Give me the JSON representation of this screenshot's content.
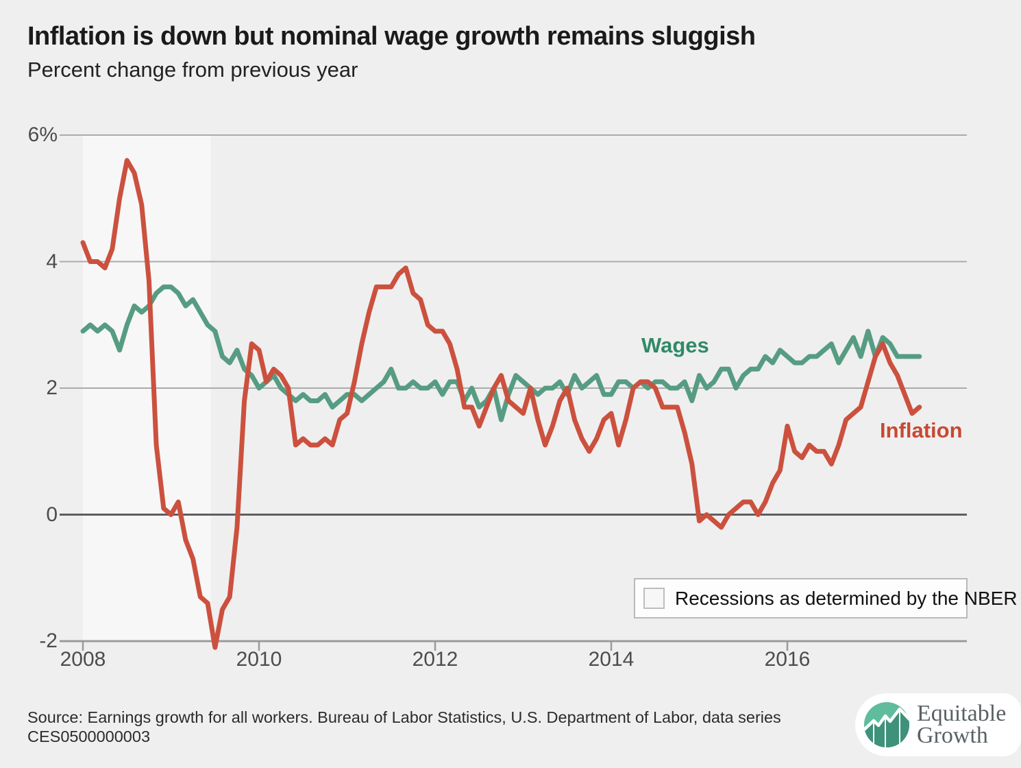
{
  "header": {
    "title": "Inflation is down but nominal wage growth remains sluggish",
    "subtitle": "Percent change from previous year"
  },
  "chart_data": {
    "type": "line",
    "title": "Inflation is down but nominal wage growth remains sluggish",
    "subtitle": "Percent change from previous year",
    "x_start_year": 2008,
    "x_step_months": 1,
    "xlim": [
      2007.73,
      2017.95
    ],
    "ylim": [
      -2,
      6
    ],
    "grid": "horizontal",
    "x_ticks": [
      2008,
      2010,
      2012,
      2014,
      2016
    ],
    "x_tick_labels": [
      "2008",
      "2010",
      "2012",
      "2014",
      "2016"
    ],
    "y_ticks": [
      6,
      4,
      2,
      0,
      -2
    ],
    "y_tick_labels": [
      "6%",
      "4",
      "2",
      "0",
      "-2"
    ],
    "recession_band": {
      "start": 2008.0,
      "end": 2009.45,
      "color": "#f7f7f7"
    },
    "legend": {
      "label": "Recessions as determined by the NBER",
      "position": "bottom-right"
    },
    "colors": {
      "grid_light": "#ababab",
      "zero_line": "#5e5e5e",
      "axis_line": "#9b9b9b",
      "background": "#efefef"
    },
    "series": [
      {
        "name": "Wages",
        "color": "#569c83",
        "label_color": "#2f8a68",
        "values": [
          2.9,
          3.0,
          2.9,
          3.0,
          2.9,
          2.6,
          3.0,
          3.3,
          3.2,
          3.3,
          3.5,
          3.6,
          3.6,
          3.5,
          3.3,
          3.4,
          3.2,
          3.0,
          2.9,
          2.5,
          2.4,
          2.6,
          2.3,
          2.2,
          2.0,
          2.1,
          2.2,
          2.0,
          1.9,
          1.8,
          1.9,
          1.8,
          1.8,
          1.9,
          1.7,
          1.8,
          1.9,
          1.9,
          1.8,
          1.9,
          2.0,
          2.1,
          2.3,
          2.0,
          2.0,
          2.1,
          2.0,
          2.0,
          2.1,
          1.9,
          2.1,
          2.1,
          1.8,
          2.0,
          1.7,
          1.8,
          2.0,
          1.5,
          1.9,
          2.2,
          2.1,
          2.0,
          1.9,
          2.0,
          2.0,
          2.1,
          1.9,
          2.2,
          2.0,
          2.1,
          2.2,
          1.9,
          1.9,
          2.1,
          2.1,
          2.0,
          2.1,
          2.0,
          2.1,
          2.1,
          2.0,
          2.0,
          2.1,
          1.8,
          2.2,
          2.0,
          2.1,
          2.3,
          2.3,
          2.0,
          2.2,
          2.3,
          2.3,
          2.5,
          2.4,
          2.6,
          2.5,
          2.4,
          2.4,
          2.5,
          2.5,
          2.6,
          2.7,
          2.4,
          2.6,
          2.8,
          2.5,
          2.9,
          2.5,
          2.8,
          2.7,
          2.5,
          2.5,
          2.5,
          2.5
        ]
      },
      {
        "name": "Inflation",
        "color": "#cb513e",
        "label_color": "#c64a32",
        "values": [
          4.3,
          4.0,
          4.0,
          3.9,
          4.2,
          5.0,
          5.6,
          5.4,
          4.9,
          3.7,
          1.1,
          0.1,
          0.0,
          0.2,
          -0.4,
          -0.7,
          -1.3,
          -1.4,
          -2.1,
          -1.5,
          -1.3,
          -0.2,
          1.8,
          2.7,
          2.6,
          2.1,
          2.3,
          2.2,
          2.0,
          1.1,
          1.2,
          1.1,
          1.1,
          1.2,
          1.1,
          1.5,
          1.6,
          2.1,
          2.7,
          3.2,
          3.6,
          3.6,
          3.6,
          3.8,
          3.9,
          3.5,
          3.4,
          3.0,
          2.9,
          2.9,
          2.7,
          2.3,
          1.7,
          1.7,
          1.4,
          1.7,
          2.0,
          2.2,
          1.8,
          1.7,
          1.6,
          2.0,
          1.5,
          1.1,
          1.4,
          1.8,
          2.0,
          1.5,
          1.2,
          1.0,
          1.2,
          1.5,
          1.6,
          1.1,
          1.5,
          2.0,
          2.1,
          2.1,
          2.0,
          1.7,
          1.7,
          1.7,
          1.3,
          0.8,
          -0.1,
          0.0,
          -0.1,
          -0.2,
          0.0,
          0.1,
          0.2,
          0.2,
          0.0,
          0.2,
          0.5,
          0.7,
          1.4,
          1.0,
          0.9,
          1.1,
          1.0,
          1.0,
          0.8,
          1.1,
          1.5,
          1.6,
          1.7,
          2.1,
          2.5,
          2.7,
          2.4,
          2.2,
          1.9,
          1.6,
          1.7
        ]
      }
    ]
  },
  "footer": {
    "source_line1": "Source: Earnings growth for all workers. Bureau of Labor Statistics, U.S. Department of Labor, data series",
    "source_line2": "CES0500000003"
  },
  "logo": {
    "line1": "Equitable",
    "line2": "Growth",
    "circle_light": "#5fbc9d",
    "circle_dark": "#3e9279"
  }
}
